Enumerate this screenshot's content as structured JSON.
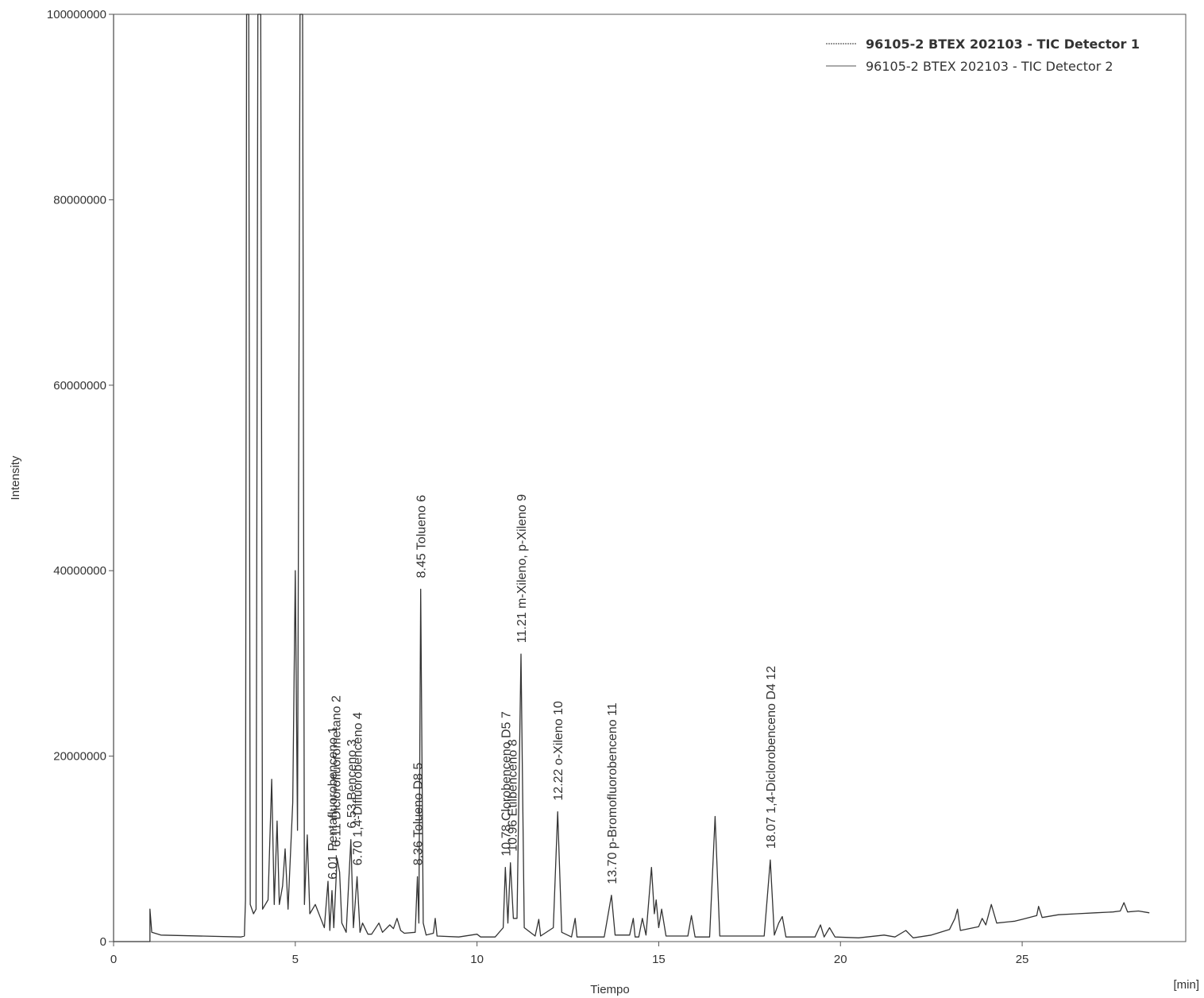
{
  "chart_data": {
    "type": "line",
    "xlabel": "Tiempo",
    "xunit": "[min]",
    "ylabel": "Intensity",
    "xlim": [
      0,
      29.5
    ],
    "ylim": [
      0,
      100000000
    ],
    "x_ticks": [
      0,
      5,
      10,
      15,
      20,
      25
    ],
    "x_tick_labels": [
      "0",
      "5",
      "10",
      "15",
      "20",
      "25"
    ],
    "y_ticks": [
      0,
      20000000,
      40000000,
      60000000,
      80000000,
      100000000
    ],
    "y_tick_labels": [
      "0",
      "20000000",
      "40000000",
      "60000000",
      "80000000",
      "100000000"
    ],
    "grid": false,
    "legend_position": "top-right",
    "series": [
      {
        "name": "96105-2  BTEX 202103 - TIC Detector 1",
        "color": "#333333",
        "points": [
          [
            0,
            0
          ],
          [
            1.0,
            0
          ],
          [
            1.0,
            3500000
          ],
          [
            1.05,
            1000000
          ],
          [
            1.3,
            700000
          ],
          [
            3.5,
            500000
          ],
          [
            3.6,
            600000
          ],
          [
            3.63,
            4500000
          ],
          [
            3.66,
            100000000
          ],
          [
            3.72,
            100000000
          ],
          [
            3.76,
            4000000
          ],
          [
            3.85,
            3000000
          ],
          [
            3.92,
            3500000
          ],
          [
            3.97,
            100000000
          ],
          [
            4.05,
            100000000
          ],
          [
            4.1,
            3500000
          ],
          [
            4.25,
            4500000
          ],
          [
            4.35,
            17500000
          ],
          [
            4.42,
            4000000
          ],
          [
            4.5,
            13000000
          ],
          [
            4.56,
            4000000
          ],
          [
            4.65,
            6000000
          ],
          [
            4.72,
            10000000
          ],
          [
            4.8,
            3500000
          ],
          [
            4.93,
            15000000
          ],
          [
            5.0,
            40000000
          ],
          [
            5.06,
            12000000
          ],
          [
            5.13,
            100000000
          ],
          [
            5.2,
            100000000
          ],
          [
            5.25,
            4000000
          ],
          [
            5.33,
            11500000
          ],
          [
            5.4,
            3000000
          ],
          [
            5.55,
            4000000
          ],
          [
            5.7,
            2500000
          ],
          [
            5.8,
            1500000
          ],
          [
            5.9,
            6500000
          ],
          [
            5.95,
            1200000
          ],
          [
            6.01,
            5500000
          ],
          [
            6.06,
            1500000
          ],
          [
            6.15,
            9000000
          ],
          [
            6.22,
            7500000
          ],
          [
            6.28,
            2000000
          ],
          [
            6.4,
            1000000
          ],
          [
            6.53,
            11000000
          ],
          [
            6.6,
            1500000
          ],
          [
            6.7,
            7000000
          ],
          [
            6.78,
            1000000
          ],
          [
            6.85,
            2000000
          ],
          [
            7.0,
            800000
          ],
          [
            7.1,
            800000
          ],
          [
            7.3,
            2000000
          ],
          [
            7.4,
            1000000
          ],
          [
            7.6,
            1800000
          ],
          [
            7.7,
            1400000
          ],
          [
            7.8,
            2500000
          ],
          [
            7.9,
            1200000
          ],
          [
            8.0,
            900000
          ],
          [
            8.3,
            1000000
          ],
          [
            8.36,
            7000000
          ],
          [
            8.4,
            2000000
          ],
          [
            8.45,
            38000000
          ],
          [
            8.52,
            2000000
          ],
          [
            8.6,
            700000
          ],
          [
            8.8,
            900000
          ],
          [
            8.85,
            2500000
          ],
          [
            8.9,
            600000
          ],
          [
            9.5,
            500000
          ],
          [
            10.0,
            800000
          ],
          [
            10.1,
            500000
          ],
          [
            10.5,
            500000
          ],
          [
            10.72,
            1500000
          ],
          [
            10.78,
            8000000
          ],
          [
            10.85,
            2000000
          ],
          [
            10.92,
            8500000
          ],
          [
            11.0,
            2500000
          ],
          [
            11.1,
            2500000
          ],
          [
            11.21,
            31000000
          ],
          [
            11.3,
            1500000
          ],
          [
            11.6,
            600000
          ],
          [
            11.7,
            2400000
          ],
          [
            11.75,
            600000
          ],
          [
            12.1,
            1500000
          ],
          [
            12.22,
            14000000
          ],
          [
            12.33,
            1000000
          ],
          [
            12.6,
            500000
          ],
          [
            12.7,
            2500000
          ],
          [
            12.75,
            500000
          ],
          [
            13.5,
            500000
          ],
          [
            13.7,
            5000000
          ],
          [
            13.8,
            700000
          ],
          [
            14.2,
            700000
          ],
          [
            14.3,
            2500000
          ],
          [
            14.35,
            500000
          ],
          [
            14.45,
            500000
          ],
          [
            14.55,
            2500000
          ],
          [
            14.65,
            700000
          ],
          [
            14.8,
            8000000
          ],
          [
            14.88,
            3000000
          ],
          [
            14.93,
            4500000
          ],
          [
            15.0,
            1500000
          ],
          [
            15.08,
            3500000
          ],
          [
            15.2,
            600000
          ],
          [
            15.8,
            600000
          ],
          [
            15.9,
            2800000
          ],
          [
            16.0,
            500000
          ],
          [
            16.4,
            500000
          ],
          [
            16.55,
            13500000
          ],
          [
            16.68,
            600000
          ],
          [
            17.9,
            600000
          ],
          [
            18.07,
            8800000
          ],
          [
            18.18,
            700000
          ],
          [
            18.3,
            2000000
          ],
          [
            18.4,
            2700000
          ],
          [
            18.5,
            500000
          ],
          [
            19.3,
            500000
          ],
          [
            19.45,
            1800000
          ],
          [
            19.55,
            500000
          ],
          [
            19.7,
            1500000
          ],
          [
            19.85,
            500000
          ],
          [
            20.5,
            400000
          ],
          [
            21.2,
            700000
          ],
          [
            21.5,
            500000
          ],
          [
            21.8,
            1200000
          ],
          [
            22.0,
            400000
          ],
          [
            22.5,
            700000
          ],
          [
            23.0,
            1300000
          ],
          [
            23.15,
            2500000
          ],
          [
            23.22,
            3500000
          ],
          [
            23.3,
            1200000
          ],
          [
            23.8,
            1600000
          ],
          [
            23.9,
            2500000
          ],
          [
            24.0,
            1800000
          ],
          [
            24.15,
            4000000
          ],
          [
            24.3,
            2000000
          ],
          [
            24.8,
            2200000
          ],
          [
            25.0,
            2400000
          ],
          [
            25.4,
            2800000
          ],
          [
            25.45,
            3800000
          ],
          [
            25.55,
            2600000
          ],
          [
            26.0,
            2900000
          ],
          [
            26.5,
            3000000
          ],
          [
            27.0,
            3100000
          ],
          [
            27.5,
            3200000
          ],
          [
            27.7,
            3300000
          ],
          [
            27.8,
            4200000
          ],
          [
            27.9,
            3200000
          ],
          [
            28.2,
            3300000
          ],
          [
            28.5,
            3100000
          ]
        ]
      },
      {
        "name": "96105-2  BTEX 202103 - TIC Detector 2",
        "color": "#555555",
        "points": [
          [
            0,
            100000000
          ],
          [
            0,
            0
          ]
        ]
      }
    ],
    "annotations": [
      {
        "text": "6.01 Pentafluorobenceno  1",
        "x": 6.01,
        "y": 5500000
      },
      {
        "text": "6.11 Diclorofluorometano  2",
        "x": 6.11,
        "y": 9000000
      },
      {
        "text": "6.53 Benceno  3",
        "x": 6.53,
        "y": 11000000
      },
      {
        "text": "6.70 1,4-Difluorobenceno  4",
        "x": 6.7,
        "y": 7000000
      },
      {
        "text": "8.36 Tolueno D8  5",
        "x": 8.36,
        "y": 7000000
      },
      {
        "text": "8.45 Tolueno  6",
        "x": 8.45,
        "y": 38000000
      },
      {
        "text": "10.78 Clorobenceno D5  7",
        "x": 10.78,
        "y": 8000000
      },
      {
        "text": "10.96 Etilbenceno  8",
        "x": 10.96,
        "y": 8500000
      },
      {
        "text": "11.21 m-Xileno, p-Xileno  9",
        "x": 11.21,
        "y": 31000000
      },
      {
        "text": "12.22 o-Xileno  10",
        "x": 12.22,
        "y": 14000000
      },
      {
        "text": "13.70 p-Bromofluorobenceno  11",
        "x": 13.7,
        "y": 5000000
      },
      {
        "text": "18.07 1,4-Diclorobenceno D4  12",
        "x": 18.07,
        "y": 8800000
      }
    ]
  }
}
